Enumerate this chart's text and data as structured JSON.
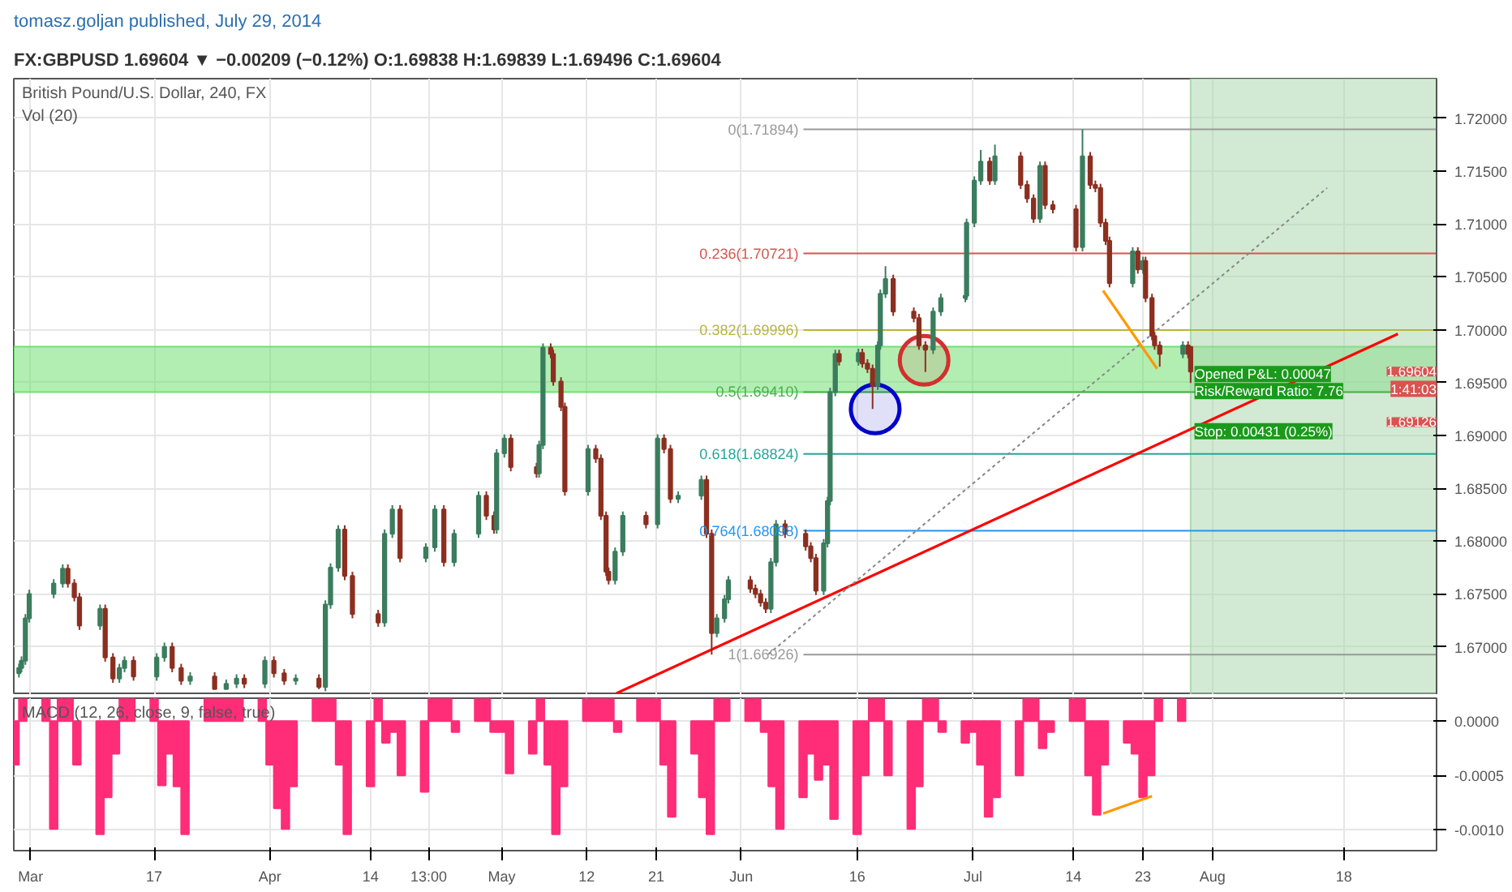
{
  "chart_data": [
    {
      "type": "candlestick",
      "title": "tomasz.goljan published, July 29, 2014",
      "subtitle": "FX:GBPUSD 1.69604 ▼ −0.00209 (−0.12%) O:1.69838 H:1.69839 L:1.69496 C:1.69604",
      "annotations": [
        "British Pound/U.S. Dollar, 240, FX",
        "Vol (20)",
        {
          "text": "Opened P&L: 0.00047",
          "x": "2014-07-29T16:00",
          "y": 1.6958
        },
        {
          "text": "Risk/Reward Ratio: 7.76",
          "x": "2014-07-29T16:00",
          "y": 1.6942
        },
        {
          "text": "Stop: 0.00431 (0.25%)",
          "x": "2014-07-29T16:00",
          "y": 1.6904
        },
        {
          "text": "1.69604",
          "x": "2014-08-30",
          "y": 1.69604
        },
        {
          "text": "1:41:03",
          "x": "2014-08-30",
          "y": 1.6944
        },
        {
          "text": "1.69126",
          "x": "2014-08-30",
          "y": 1.69126
        }
      ],
      "x": [
        "2014-02-27T12:00",
        "2014-02-27T20:00",
        "2014-02-28T08:00",
        "2014-02-28T20:00",
        "2014-03-04T00:00",
        "2014-03-05T04:00",
        "2014-03-05T20:00",
        "2014-03-06T16:00",
        "2014-03-07T08:00",
        "2014-03-10T00:00",
        "2014-03-10T16:00",
        "2014-03-11T16:00",
        "2014-03-12T12:00",
        "2014-03-13T04:00",
        "2014-03-14T08:00",
        "2014-03-17T08:00",
        "2014-03-18T08:00",
        "2014-03-19T08:00",
        "2014-03-20T12:00",
        "2014-03-21T16:00",
        "2014-03-24T20:00",
        "2014-03-26T08:00",
        "2014-03-27T16:00",
        "2014-03-28T16:00",
        "2014-03-31T08:00",
        "2014-04-01T12:00",
        "2014-04-02T20:00",
        "2014-04-04T08:00",
        "2014-04-07T08:00",
        "2014-04-08T04:00",
        "2014-04-08T20:00",
        "2014-04-09T20:00",
        "2014-04-10T16:00",
        "2014-04-11T16:00",
        "2014-04-15T00:00",
        "2014-04-15T20:00",
        "2014-04-16T20:00",
        "2014-04-17T20:00",
        "2014-04-21T04:00",
        "2014-04-22T08:00",
        "2014-04-23T12:00",
        "2014-04-24T20:00",
        "2014-04-28T00:00",
        "2014-04-29T00:00",
        "2014-04-30T00:00",
        "2014-04-30T08:00",
        "2014-05-01T08:00",
        "2014-05-02T04:00",
        "2014-05-05T12:00",
        "2014-05-05T20:00",
        "2014-05-06T08:00",
        "2014-05-07T08:00",
        "2014-05-07T16:00",
        "2014-05-08T16:00",
        "2014-05-09T04:00",
        "2014-05-12T04:00",
        "2014-05-13T04:00",
        "2014-05-13T20:00",
        "2014-05-14T12:00",
        "2014-05-14T20:00",
        "2014-05-15T16:00",
        "2014-05-16T16:00",
        "2014-05-19T16:00",
        "2014-05-21T04:00",
        "2014-05-22T00:00",
        "2014-05-22T20:00",
        "2014-05-23T20:00",
        "2014-05-26T20:00",
        "2014-05-27T12:00",
        "2014-05-28T04:00",
        "2014-05-28T20:00",
        "2014-05-29T20:00",
        "2014-05-30T08:00",
        "2014-06-02T04:00",
        "2014-06-02T20:00",
        "2014-06-03T12:00",
        "2014-06-04T04:00",
        "2014-06-04T20:00",
        "2014-06-05T12:00",
        "2014-06-06T16:00",
        "2014-06-09T08:00",
        "2014-06-10T00:00",
        "2014-06-10T16:00",
        "2014-06-11T16:00",
        "2014-06-12T04:00",
        "2014-06-12T12:00",
        "2014-06-13T04:00",
        "2014-06-13T16:00",
        "2014-06-16T04:00",
        "2014-06-16T16:00",
        "2014-06-17T08:00",
        "2014-06-18T00:00",
        "2014-06-18T16:00",
        "2014-06-19T00:00",
        "2014-06-19T16:00",
        "2014-06-20T16:00",
        "2014-06-23T08:00",
        "2014-06-24T00:00",
        "2014-06-24T20:00",
        "2014-06-25T20:00",
        "2014-06-26T20:00",
        "2014-06-30T00:00",
        "2014-06-30T04:00",
        "2014-07-01T04:00",
        "2014-07-02T00:00",
        "2014-07-03T04:00",
        "2014-07-03T20:00",
        "2014-07-07T04:00",
        "2014-07-08T00:00",
        "2014-07-08T20:00",
        "2014-07-09T16:00",
        "2014-07-10T08:00",
        "2014-07-11T08:00",
        "2014-07-14T08:00",
        "2014-07-15T04:00",
        "2014-07-16T04:00",
        "2014-07-16T20:00",
        "2014-07-17T12:00",
        "2014-07-18T04:00",
        "2014-07-18T16:00",
        "2014-07-21T16:00",
        "2014-07-22T08:00",
        "2014-07-23T00:00",
        "2014-07-23T08:00",
        "2014-07-24T04:00",
        "2014-07-24T12:00",
        "2014-07-25T04:00",
        "2014-07-28T04:00",
        "2014-07-28T20:00",
        "2014-07-29T04:00"
      ],
      "ohlc": [
        [
          1.6675,
          1.6684,
          1.6671,
          1.668
        ],
        [
          1.668,
          1.6691,
          1.6676,
          1.6687
        ],
        [
          1.6687,
          1.6731,
          1.6683,
          1.6727
        ],
        [
          1.6727,
          1.6754,
          1.6723,
          1.675
        ],
        [
          1.675,
          1.6764,
          1.6746,
          1.676
        ],
        [
          1.676,
          1.6778,
          1.6756,
          1.6774
        ],
        [
          1.6774,
          1.6778,
          1.6756,
          1.676
        ],
        [
          1.676,
          1.6764,
          1.6743,
          1.6747
        ],
        [
          1.6747,
          1.6751,
          1.6716,
          1.672
        ],
        [
          1.672,
          1.674,
          1.6716,
          1.6736
        ],
        [
          1.6736,
          1.674,
          1.6686,
          1.669
        ],
        [
          1.669,
          1.6694,
          1.6666,
          1.667
        ],
        [
          1.667,
          1.6684,
          1.6666,
          1.668
        ],
        [
          1.668,
          1.6691,
          1.6676,
          1.6687
        ],
        [
          1.6687,
          1.6691,
          1.6668,
          1.6672
        ],
        [
          1.6672,
          1.6694,
          1.6668,
          1.669
        ],
        [
          1.669,
          1.6704,
          1.6686,
          1.67
        ],
        [
          1.67,
          1.6704,
          1.6676,
          1.668
        ],
        [
          1.668,
          1.6684,
          1.6664,
          1.6668
        ],
        [
          1.6668,
          1.6676,
          1.6664,
          1.6672
        ],
        [
          1.6672,
          1.6676,
          1.666,
          1.666
        ],
        [
          1.666,
          1.6669,
          1.666,
          1.6665
        ],
        [
          1.6665,
          1.6674,
          1.6661,
          1.667
        ],
        [
          1.667,
          1.6674,
          1.6661,
          1.6665
        ],
        [
          1.6665,
          1.6691,
          1.6661,
          1.6687
        ],
        [
          1.6687,
          1.6691,
          1.6671,
          1.6675
        ],
        [
          1.6675,
          1.6679,
          1.6664,
          1.6668
        ],
        [
          1.6668,
          1.6674,
          1.6664,
          1.667
        ],
        [
          1.667,
          1.6674,
          1.666,
          1.6662
        ],
        [
          1.6662,
          1.6744,
          1.6658,
          1.674
        ],
        [
          1.674,
          1.6779,
          1.6736,
          1.6775
        ],
        [
          1.6775,
          1.6815,
          1.6771,
          1.6811
        ],
        [
          1.6811,
          1.6815,
          1.6763,
          1.6767
        ],
        [
          1.6767,
          1.6771,
          1.6727,
          1.6731
        ],
        [
          1.6731,
          1.6735,
          1.6719,
          1.6723
        ],
        [
          1.6723,
          1.6811,
          1.6719,
          1.6807
        ],
        [
          1.6807,
          1.6834,
          1.6803,
          1.683
        ],
        [
          1.683,
          1.6834,
          1.678,
          1.6784
        ],
        [
          1.6784,
          1.6798,
          1.678,
          1.6794
        ],
        [
          1.6794,
          1.6834,
          1.679,
          1.683
        ],
        [
          1.683,
          1.6834,
          1.6776,
          1.678
        ],
        [
          1.678,
          1.6811,
          1.6776,
          1.6807
        ],
        [
          1.6807,
          1.6847,
          1.6803,
          1.6843
        ],
        [
          1.6843,
          1.6847,
          1.682,
          1.6824
        ],
        [
          1.6824,
          1.6828,
          1.6807,
          1.6811
        ],
        [
          1.6811,
          1.6887,
          1.6807,
          1.6883
        ],
        [
          1.6883,
          1.6901,
          1.6879,
          1.6897
        ],
        [
          1.6897,
          1.6901,
          1.6866,
          1.687
        ],
        [
          1.687,
          1.6874,
          1.686,
          1.6864
        ],
        [
          1.6864,
          1.6895,
          1.686,
          1.6891
        ],
        [
          1.6891,
          1.6987,
          1.6887,
          1.6983
        ],
        [
          1.6983,
          1.6987,
          1.6973,
          1.6977
        ],
        [
          1.6977,
          1.6981,
          1.6947,
          1.6951
        ],
        [
          1.6951,
          1.6955,
          1.6923,
          1.6927
        ],
        [
          1.6927,
          1.6931,
          1.6843,
          1.6847
        ],
        [
          1.6847,
          1.6891,
          1.6843,
          1.6887
        ],
        [
          1.6887,
          1.6891,
          1.6874,
          1.6878
        ],
        [
          1.6878,
          1.6882,
          1.682,
          1.6824
        ],
        [
          1.6824,
          1.6828,
          1.6767,
          1.6771
        ],
        [
          1.6771,
          1.6775,
          1.6759,
          1.6763
        ],
        [
          1.6763,
          1.6794,
          1.6759,
          1.679
        ],
        [
          1.679,
          1.6828,
          1.6786,
          1.6824
        ],
        [
          1.6824,
          1.6828,
          1.6812,
          1.6816
        ],
        [
          1.6816,
          1.6901,
          1.6812,
          1.6897
        ],
        [
          1.6897,
          1.6901,
          1.6883,
          1.6887
        ],
        [
          1.6887,
          1.6891,
          1.6836,
          1.684
        ],
        [
          1.684,
          1.6847,
          1.6836,
          1.6843
        ],
        [
          1.6843,
          1.6862,
          1.6839,
          1.6858
        ],
        [
          1.6858,
          1.6862,
          1.6803,
          1.6807
        ],
        [
          1.6807,
          1.6811,
          1.66926,
          1.6713
        ],
        [
          1.6713,
          1.6731,
          1.6709,
          1.6727
        ],
        [
          1.6727,
          1.6749,
          1.6723,
          1.6745
        ],
        [
          1.6745,
          1.6767,
          1.6741,
          1.6763
        ],
        [
          1.6763,
          1.6767,
          1.6751,
          1.6755
        ],
        [
          1.6755,
          1.6759,
          1.6746,
          1.675
        ],
        [
          1.675,
          1.6754,
          1.6738,
          1.6742
        ],
        [
          1.6742,
          1.6746,
          1.6732,
          1.6736
        ],
        [
          1.6736,
          1.6784,
          1.6732,
          1.678
        ],
        [
          1.678,
          1.682,
          1.6776,
          1.6816
        ],
        [
          1.6816,
          1.682,
          1.6803,
          1.6807
        ],
        [
          1.6807,
          1.6811,
          1.6791,
          1.6795
        ],
        [
          1.6795,
          1.6799,
          1.678,
          1.6784
        ],
        [
          1.6784,
          1.6788,
          1.6749,
          1.6753
        ],
        [
          1.6753,
          1.6802,
          1.6749,
          1.6798
        ],
        [
          1.6798,
          1.6842,
          1.6794,
          1.6838
        ],
        [
          1.6838,
          1.6945,
          1.6834,
          1.6941
        ],
        [
          1.6941,
          1.6981,
          1.6937,
          1.6977
        ],
        [
          1.6977,
          1.6981,
          1.6966,
          1.697
        ],
        [
          1.697,
          1.6982,
          1.6966,
          1.6978
        ],
        [
          1.6978,
          1.6982,
          1.6964,
          1.6968
        ],
        [
          1.6968,
          1.6972,
          1.6959,
          1.6963
        ],
        [
          1.6963,
          1.6967,
          1.6925,
          1.6947
        ],
        [
          1.6947,
          1.6989,
          1.6943,
          1.6985
        ],
        [
          1.6985,
          1.7038,
          1.6981,
          1.7034
        ],
        [
          1.7034,
          1.706,
          1.703,
          1.7048
        ],
        [
          1.7048,
          1.7052,
          1.7013,
          1.7017
        ],
        [
          1.7017,
          1.7021,
          1.7007,
          1.7011
        ],
        [
          1.7011,
          1.7015,
          1.6981,
          1.6985
        ],
        [
          1.6985,
          1.6989,
          1.696,
          1.6981
        ],
        [
          1.6981,
          1.7021,
          1.6977,
          1.7017
        ],
        [
          1.7017,
          1.7034,
          1.7013,
          1.703
        ],
        [
          1.703,
          1.7034,
          1.7026,
          1.7032
        ],
        [
          1.7032,
          1.7105,
          1.7028,
          1.7101
        ],
        [
          1.7101,
          1.7145,
          1.7097,
          1.7141
        ],
        [
          1.7141,
          1.717,
          1.7137,
          1.7159
        ],
        [
          1.7159,
          1.7163,
          1.7137,
          1.7141
        ],
        [
          1.7141,
          1.7175,
          1.7137,
          1.7164
        ],
        [
          1.7164,
          1.7168,
          1.7133,
          1.7137
        ],
        [
          1.7137,
          1.7141,
          1.712,
          1.7124
        ],
        [
          1.7124,
          1.7128,
          1.7101,
          1.7105
        ],
        [
          1.7105,
          1.7159,
          1.7101,
          1.7155
        ],
        [
          1.7155,
          1.7159,
          1.7114,
          1.7118
        ],
        [
          1.7118,
          1.7122,
          1.711,
          1.7114
        ],
        [
          1.7114,
          1.7118,
          1.7074,
          1.7078
        ],
        [
          1.7078,
          1.71894,
          1.7074,
          1.7164
        ],
        [
          1.7164,
          1.7168,
          1.7133,
          1.7137
        ],
        [
          1.7137,
          1.7141,
          1.713,
          1.7134
        ],
        [
          1.7134,
          1.7138,
          1.7097,
          1.7101
        ],
        [
          1.7101,
          1.7105,
          1.708,
          1.7084
        ],
        [
          1.7084,
          1.7088,
          1.704,
          1.7044
        ],
        [
          1.7044,
          1.7078,
          1.704,
          1.7074
        ],
        [
          1.7074,
          1.7078,
          1.7053,
          1.7057
        ],
        [
          1.7057,
          1.7069,
          1.7053,
          1.7065
        ],
        [
          1.7065,
          1.7069,
          1.7026,
          1.703
        ],
        [
          1.703,
          1.7034,
          1.699,
          1.6994
        ],
        [
          1.6994,
          1.6998,
          1.6981,
          1.6985
        ],
        [
          1.6985,
          1.6989,
          1.6965,
          1.6977
        ],
        [
          1.6977,
          1.6989,
          1.6973,
          1.6985
        ],
        [
          1.6985,
          1.6989,
          1.6973,
          1.6977
        ],
        [
          1.69838,
          1.69839,
          1.69496,
          1.69604
        ]
      ],
      "colors": [
        "#3b7d5e",
        "#3b7d5e",
        "#3b7d5e",
        "#3b7d5e",
        "#3b7d5e",
        "#3b7d5e",
        "#8c2f20",
        "#8c2f20",
        "#8c2f20",
        "#3b7d5e",
        "#8c2f20",
        "#8c2f20",
        "#3b7d5e",
        "#3b7d5e",
        "#8c2f20",
        "#3b7d5e",
        "#3b7d5e",
        "#8c2f20",
        "#8c2f20",
        "#3b7d5e",
        "#8c2f20",
        "#3b7d5e",
        "#3b7d5e",
        "#8c2f20",
        "#3b7d5e",
        "#8c2f20",
        "#8c2f20",
        "#3b7d5e",
        "#8c2f20",
        "#3b7d5e",
        "#3b7d5e",
        "#3b7d5e",
        "#8c2f20",
        "#8c2f20",
        "#8c2f20",
        "#3b7d5e",
        "#3b7d5e",
        "#8c2f20",
        "#3b7d5e",
        "#3b7d5e",
        "#8c2f20",
        "#3b7d5e",
        "#3b7d5e",
        "#8c2f20",
        "#8c2f20",
        "#3b7d5e",
        "#3b7d5e",
        "#8c2f20",
        "#8c2f20",
        "#3b7d5e",
        "#3b7d5e",
        "#8c2f20",
        "#8c2f20",
        "#8c2f20",
        "#8c2f20",
        "#3b7d5e",
        "#8c2f20",
        "#8c2f20",
        "#8c2f20",
        "#8c2f20",
        "#3b7d5e",
        "#3b7d5e",
        "#8c2f20",
        "#3b7d5e",
        "#8c2f20",
        "#8c2f20",
        "#3b7d5e",
        "#3b7d5e",
        "#8c2f20",
        "#8c2f20",
        "#3b7d5e",
        "#3b7d5e",
        "#3b7d5e",
        "#8c2f20",
        "#8c2f20",
        "#8c2f20",
        "#8c2f20",
        "#3b7d5e",
        "#3b7d5e",
        "#8c2f20",
        "#8c2f20",
        "#8c2f20",
        "#8c2f20",
        "#3b7d5e",
        "#3b7d5e",
        "#3b7d5e",
        "#3b7d5e",
        "#8c2f20",
        "#3b7d5e",
        "#8c2f20",
        "#8c2f20",
        "#8c2f20",
        "#3b7d5e",
        "#3b7d5e",
        "#3b7d5e",
        "#8c2f20",
        "#8c2f20",
        "#8c2f20",
        "#8c2f20",
        "#3b7d5e",
        "#3b7d5e",
        "#3b7d5e",
        "#3b7d5e",
        "#3b7d5e",
        "#3b7d5e",
        "#8c2f20",
        "#3b7d5e",
        "#8c2f20",
        "#8c2f20",
        "#8c2f20",
        "#3b7d5e",
        "#8c2f20",
        "#8c2f20",
        "#8c2f20",
        "#3b7d5e",
        "#8c2f20",
        "#8c2f20",
        "#8c2f20",
        "#8c2f20",
        "#8c2f20",
        "#3b7d5e",
        "#8c2f20",
        "#3b7d5e",
        "#8c2f20",
        "#8c2f20",
        "#8c2f20",
        "#8c2f20",
        "#3b7d5e",
        "#8c2f20",
        "#8c2f20"
      ],
      "series": [
        {
          "type": "line",
          "color": "#ff0000",
          "x": [
            "2014-05-15T20:00",
            "2014-08-25T00:00"
          ],
          "values": [
            1.6656,
            1.6996
          ]
        },
        {
          "type": "line",
          "line_style": "dotted",
          "color": "#888888",
          "x": [
            "2014-06-04T12:00",
            "2014-08-15T20:00"
          ],
          "values": [
            1.6693,
            1.7134
          ]
        },
        {
          "type": "line",
          "color": "#ff9800",
          "x": [
            "2014-07-17T20:00",
            "2014-07-24T20:00"
          ],
          "values": [
            1.7037,
            1.6963
          ]
        },
        {
          "type": "scatter",
          "marker": "circle",
          "color": "#0000cc",
          "x": [
            "2014-06-18T08:00"
          ],
          "values": [
            1.6925
          ]
        },
        {
          "type": "scatter",
          "marker": "circle",
          "color": "#d32f2f",
          "x": [
            "2014-06-24T16:00"
          ],
          "values": [
            1.6971
          ]
        }
      ],
      "ref_lines": [
        {
          "axis": "y",
          "value": 1.71894,
          "label": "0(1.71894)",
          "color": "#999999"
        },
        {
          "axis": "y",
          "value": 1.70721,
          "label": "0.236(1.70721)",
          "color": "#d9534f"
        },
        {
          "axis": "y",
          "value": 1.69996,
          "label": "0.382(1.69996)",
          "color": "#b8b53a"
        },
        {
          "axis": "y",
          "value": 1.6941,
          "label": "0.5(1.69410)",
          "color": "#4caf50"
        },
        {
          "axis": "y",
          "value": 1.68824,
          "label": "0.618(1.68824)",
          "color": "#26a69a"
        },
        {
          "axis": "y",
          "value": 1.68098,
          "label": "0.764(1.68098)",
          "color": "#2196f3"
        },
        {
          "axis": "y",
          "value": 1.66926,
          "label": "1(1.66926)",
          "color": "#999999"
        }
      ],
      "bands": [
        {
          "axis": "y",
          "from": 1.6941,
          "to": 1.6984,
          "color": "#66dd66"
        },
        {
          "axis": "x",
          "from": "2014-07-29T04:00",
          "to": "2014-08-30",
          "color": "#a5d6a7"
        }
      ],
      "xlim": [
        "2014-02-26T20:00",
        "2014-08-30"
      ],
      "ylim": [
        1.66545,
        1.72374
      ],
      "yticks": [
        {
          "value": 1.67,
          "label": "1.67000"
        },
        {
          "value": 1.675,
          "label": "1.67500"
        },
        {
          "value": 1.68,
          "label": "1.68000"
        },
        {
          "value": 1.685,
          "label": "1.68500"
        },
        {
          "value": 1.69,
          "label": "1.69000"
        },
        {
          "value": 1.695,
          "label": "1.69500"
        },
        {
          "value": 1.7,
          "label": "1.70000"
        },
        {
          "value": 1.705,
          "label": "1.70500"
        },
        {
          "value": 1.71,
          "label": "1.71000"
        },
        {
          "value": 1.715,
          "label": "1.71500"
        },
        {
          "value": 1.72,
          "label": "1.72000"
        }
      ],
      "xticks": [
        "2014-03-01",
        "2014-03-17",
        "2014-04-01",
        "2014-04-14",
        "2014-04-21T13:00",
        "2014-05-01",
        "2014-05-12",
        "2014-05-21",
        "2014-06-01",
        "2014-06-16",
        "2014-07-01",
        "2014-07-14",
        "2014-07-23",
        "2014-08-01",
        "2014-08-18"
      ],
      "tick_labels": "y",
      "grid": true
    },
    {
      "type": "bar",
      "annotations": [
        "MACD (12, 26, close, 9, false, true)"
      ],
      "x": [
        "2014-02-27",
        "2014-02-28",
        "2014-03-03",
        "2014-03-04",
        "2014-03-05",
        "2014-03-06",
        "2014-03-07",
        "2014-03-10",
        "2014-03-11",
        "2014-03-12",
        "2014-03-13",
        "2014-03-14",
        "2014-03-17",
        "2014-03-18",
        "2014-03-19",
        "2014-03-20",
        "2014-03-21",
        "2014-03-24",
        "2014-03-25",
        "2014-03-26",
        "2014-03-27",
        "2014-03-28",
        "2014-03-31",
        "2014-04-01",
        "2014-04-02",
        "2014-04-03",
        "2014-04-04",
        "2014-04-07",
        "2014-04-08",
        "2014-04-09",
        "2014-04-10",
        "2014-04-11",
        "2014-04-14",
        "2014-04-15",
        "2014-04-16",
        "2014-04-17",
        "2014-04-18",
        "2014-04-21",
        "2014-04-22",
        "2014-04-23",
        "2014-04-24",
        "2014-04-25",
        "2014-04-28",
        "2014-04-29",
        "2014-04-30",
        "2014-05-01",
        "2014-05-02",
        "2014-05-05",
        "2014-05-06",
        "2014-05-07",
        "2014-05-08",
        "2014-05-09",
        "2014-05-12",
        "2014-05-13",
        "2014-05-14",
        "2014-05-15",
        "2014-05-16",
        "2014-05-19",
        "2014-05-20",
        "2014-05-21",
        "2014-05-22",
        "2014-05-23",
        "2014-05-26",
        "2014-05-27",
        "2014-05-28",
        "2014-05-29",
        "2014-05-30",
        "2014-06-02",
        "2014-06-03",
        "2014-06-04",
        "2014-06-05",
        "2014-06-06",
        "2014-06-09",
        "2014-06-10",
        "2014-06-11",
        "2014-06-12",
        "2014-06-13",
        "2014-06-16",
        "2014-06-17",
        "2014-06-18",
        "2014-06-19",
        "2014-06-20",
        "2014-06-23",
        "2014-06-24",
        "2014-06-25",
        "2014-06-26",
        "2014-06-27",
        "2014-06-30",
        "2014-07-01",
        "2014-07-02",
        "2014-07-03",
        "2014-07-04",
        "2014-07-07",
        "2014-07-08",
        "2014-07-09",
        "2014-07-10",
        "2014-07-11",
        "2014-07-14",
        "2014-07-15",
        "2014-07-16",
        "2014-07-17",
        "2014-07-18",
        "2014-07-21",
        "2014-07-22",
        "2014-07-23",
        "2014-07-24",
        "2014-07-25",
        "2014-07-28"
      ],
      "series": [
        {
          "type": "bar",
          "color": "#ff2d78",
          "values": [
            -0.0004,
            0.0002,
            0.0002,
            -0.00099,
            0.0002,
            0.0002,
            -0.0004,
            -0.00104,
            -0.0007,
            -0.0003,
            0.0002,
            0.0002,
            0.0002,
            -0.00059,
            -0.0003,
            -0.0006,
            -0.00104,
            0.0002,
            0.0002,
            0.0002,
            0.0002,
            0.0002,
            0.0002,
            -0.0004,
            -0.0008,
            -0.00099,
            -0.0006,
            0.0002,
            0.0002,
            0.0002,
            -0.0004,
            -0.00104,
            -0.0006,
            0.0002,
            -0.0002,
            -0.0001,
            -0.0005,
            -0.00065,
            0.0002,
            0.0002,
            0.0002,
            -0.0001,
            0.0002,
            0.0002,
            -0.0001,
            -0.0001,
            -0.00048,
            -0.0003,
            0.0002,
            -0.0004,
            -0.00104,
            -0.0006,
            0.0002,
            0.0002,
            0.0002,
            0.0002,
            -0.0001,
            0.0002,
            0.0002,
            0.0002,
            -0.0004,
            -0.00088,
            -0.0003,
            -0.0007,
            -0.00104,
            0.0002,
            0.0002,
            0.0002,
            0.0002,
            -0.0001,
            -0.0006,
            -0.00099,
            -0.0007,
            -0.0003,
            -0.00054,
            -0.0004,
            -0.0009,
            -0.00104,
            -0.0005,
            0.0002,
            0.0002,
            -0.0005,
            -0.00099,
            -0.0006,
            0.0002,
            0.0002,
            -0.0001,
            -0.0002,
            -0.0001,
            -0.0004,
            -0.00088,
            -0.0007,
            -0.0005,
            0.0002,
            0.0002,
            -0.00025,
            -0.0001,
            0.0002,
            0.0002,
            -0.0005,
            -0.00086,
            -0.0004,
            -0.0002,
            -0.0003,
            -0.0007,
            -0.0005,
            0.0002,
            0.0002
          ]
        },
        {
          "type": "line",
          "color": "#ff9800",
          "x": [
            "2014-07-17T20:00",
            "2014-07-24T04:00"
          ],
          "values": [
            -0.00085,
            -0.00069
          ]
        }
      ],
      "xlim": [
        "2014-02-26T20:00",
        "2014-08-30"
      ],
      "ylim": [
        -0.00119,
        0.00021
      ],
      "yticks": [
        {
          "value": 0,
          "label": "0.0000"
        },
        {
          "value": -0.0005,
          "label": "-0.0005"
        },
        {
          "value": -0.001,
          "label": "-0.0010"
        }
      ],
      "xticks": [
        {
          "value": "2014-03-01",
          "label": "Mar"
        },
        {
          "value": "2014-03-17",
          "label": "17"
        },
        {
          "value": "2014-04-01",
          "label": "Apr"
        },
        {
          "value": "2014-04-14",
          "label": "14"
        },
        {
          "value": "2014-04-21T13:00",
          "label": "13:00"
        },
        {
          "value": "2014-05-01",
          "label": "May"
        },
        {
          "value": "2014-05-12",
          "label": "12"
        },
        {
          "value": "2014-05-21",
          "label": "21"
        },
        {
          "value": "2014-06-01",
          "label": "Jun"
        },
        {
          "value": "2014-06-16",
          "label": "16"
        },
        {
          "value": "2014-07-01",
          "label": "Jul"
        },
        {
          "value": "2014-07-14",
          "label": "14"
        },
        {
          "value": "2014-07-23",
          "label": "23"
        },
        {
          "value": "2014-08-01",
          "label": "Aug"
        },
        {
          "value": "2014-08-18",
          "label": "18"
        }
      ],
      "grid": true
    }
  ]
}
